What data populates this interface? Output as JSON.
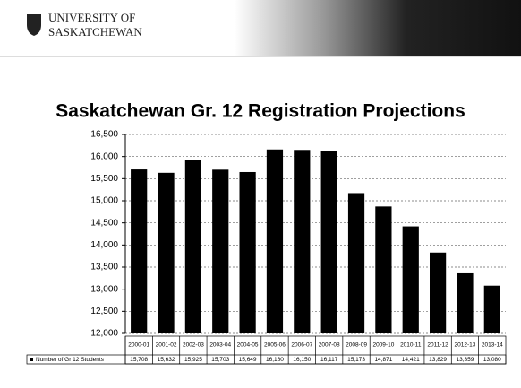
{
  "header": {
    "line1": "UNIVERSITY OF",
    "line2": "SASKATCHEWAN"
  },
  "chart_data": {
    "type": "bar",
    "title": "Saskatchewan Gr. 12 Registration Projections",
    "categories": [
      "2000-01",
      "2001-02",
      "2002-03",
      "2003-04",
      "2004-05",
      "2005-06",
      "2006-07",
      "2007-08",
      "2008-09",
      "2009-10",
      "2010-11",
      "2011-12",
      "2012-13",
      "2013-14"
    ],
    "series": [
      {
        "name": "Number of Gr 12 Students",
        "color": "#000000",
        "values": [
          15708,
          15632,
          15925,
          15703,
          15649,
          16160,
          16150,
          16117,
          15173,
          14871,
          14421,
          13829,
          13359,
          13080
        ],
        "value_labels": [
          "15,708",
          "15,632",
          "15,925",
          "15,703",
          "15,649",
          "16,160",
          "16,150",
          "16,117",
          "15,173",
          "14,871",
          "14,421",
          "13,829",
          "13,359",
          "13,080"
        ]
      }
    ],
    "ylim": [
      12000,
      16500
    ],
    "yticks": [
      {
        "value": 12000,
        "label": "12,000"
      },
      {
        "value": 12500,
        "label": "12,500"
      },
      {
        "value": 13000,
        "label": "13,000"
      },
      {
        "value": 13500,
        "label": "13,500"
      },
      {
        "value": 14000,
        "label": "14,000"
      },
      {
        "value": 14500,
        "label": "14,500"
      },
      {
        "value": 15000,
        "label": "15,000"
      },
      {
        "value": 15500,
        "label": "15,500"
      },
      {
        "value": 16000,
        "label": "16,000"
      },
      {
        "value": 16500,
        "label": "16,500"
      }
    ],
    "grid": true
  }
}
